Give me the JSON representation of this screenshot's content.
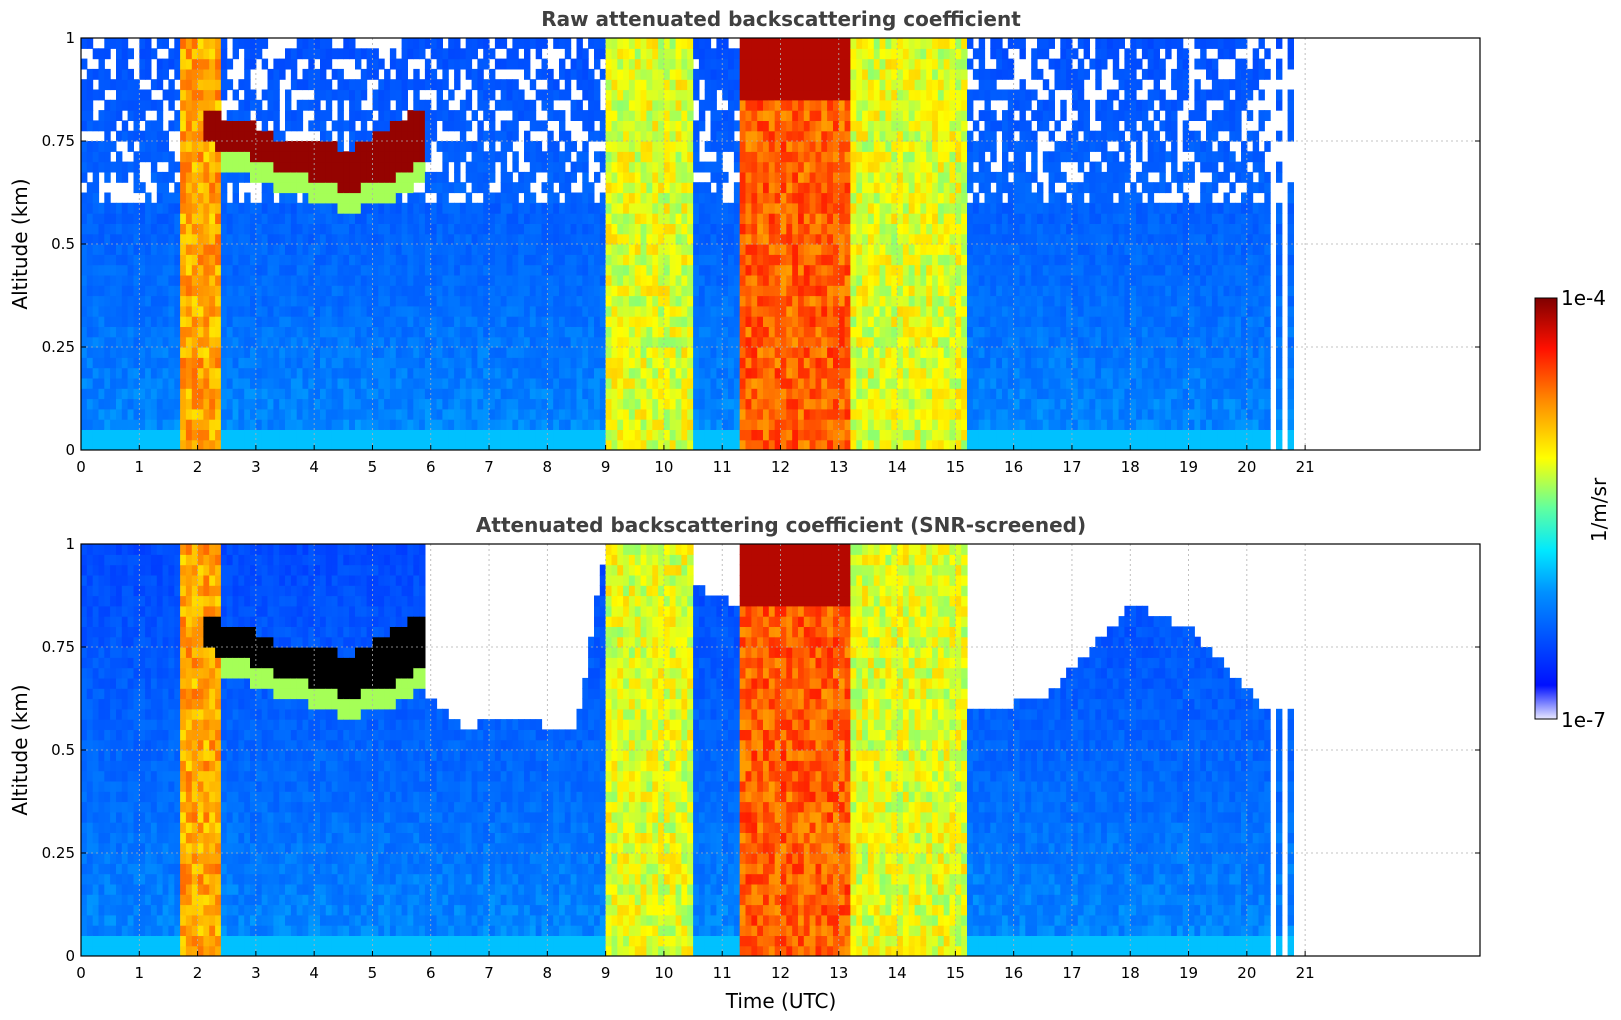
{
  "chart_data": [
    {
      "type": "heatmap",
      "title": "Raw attenuated backscattering coefficient",
      "xlabel": "",
      "ylabel": "Altitude (km)",
      "xlim": [
        0,
        24
      ],
      "ylim": [
        0,
        1
      ],
      "x_ticks": [
        "0",
        "1",
        "2",
        "3",
        "4",
        "5",
        "6",
        "7",
        "8",
        "9",
        "10",
        "11",
        "12",
        "13",
        "14",
        "15",
        "16",
        "17",
        "18",
        "19",
        "20",
        "21"
      ],
      "y_ticks": [
        "0",
        "0.25",
        "0.5",
        "0.75",
        "1"
      ],
      "grid": true,
      "screened": false,
      "cloud_layer": [
        {
          "x": 2.2,
          "y_bottom": 0.74,
          "y_top": 0.82
        },
        {
          "x": 2.8,
          "y_bottom": 0.72,
          "y_top": 0.8
        },
        {
          "x": 3.5,
          "y_bottom": 0.67,
          "y_top": 0.75
        },
        {
          "x": 4.0,
          "y_bottom": 0.66,
          "y_top": 0.76
        },
        {
          "x": 4.6,
          "y_bottom": 0.63,
          "y_top": 0.73
        },
        {
          "x": 5.2,
          "y_bottom": 0.65,
          "y_top": 0.78
        },
        {
          "x": 5.8,
          "y_bottom": 0.7,
          "y_top": 0.83
        }
      ],
      "high_signal_bands": [
        {
          "x_start": 1.75,
          "x_end": 2.4,
          "level": "high"
        },
        {
          "x_start": 9.0,
          "x_end": 10.5,
          "level": "medium"
        },
        {
          "x_start": 11.3,
          "x_end": 13.2,
          "level": "very-high"
        },
        {
          "x_start": 13.2,
          "x_end": 15.2,
          "level": "medium"
        }
      ],
      "data_end_time": 20.8
    },
    {
      "type": "heatmap",
      "title": "Attenuated backscattering coefficient (SNR-screened)",
      "xlabel": "Time (UTC)",
      "ylabel": "Altitude (km)",
      "xlim": [
        0,
        24
      ],
      "ylim": [
        0,
        1
      ],
      "x_ticks": [
        "0",
        "1",
        "2",
        "3",
        "4",
        "5",
        "6",
        "7",
        "8",
        "9",
        "10",
        "11",
        "12",
        "13",
        "14",
        "15",
        "16",
        "17",
        "18",
        "19",
        "20",
        "21"
      ],
      "y_ticks": [
        "0",
        "0.25",
        "0.5",
        "0.75",
        "1"
      ],
      "grid": true,
      "screened": true,
      "screening_boundary": [
        {
          "x": 6.0,
          "y": 0.62
        },
        {
          "x": 6.5,
          "y": 0.56
        },
        {
          "x": 7.5,
          "y": 0.57
        },
        {
          "x": 8.5,
          "y": 0.55
        },
        {
          "x": 9.0,
          "y": 1.0
        },
        {
          "x": 15.2,
          "y": 0.6
        },
        {
          "x": 16.5,
          "y": 0.62
        },
        {
          "x": 18.0,
          "y": 0.85
        },
        {
          "x": 19.0,
          "y": 0.8
        },
        {
          "x": 20.3,
          "y": 0.6
        }
      ],
      "data_end_time": 20.8
    }
  ],
  "colorbar": {
    "label": "1/m/sr",
    "max_label": "1e-4",
    "min_label": "1e-7",
    "colormap": "jet",
    "colors": [
      "#e6e6ff",
      "#0000ff",
      "#00a0ff",
      "#00ffff",
      "#80ff80",
      "#ffff00",
      "#ff8000",
      "#ff0000",
      "#800000"
    ]
  }
}
